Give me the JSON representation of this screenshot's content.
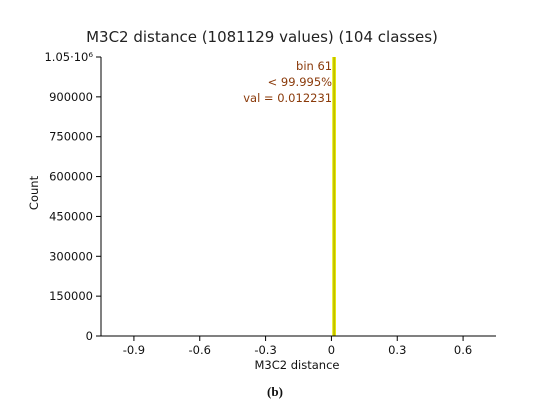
{
  "caption": "(b)",
  "chart_data": {
    "type": "bar",
    "title": "M3C2 distance (1081129 values)  (104 classes)",
    "xlabel": "M3C2 distance",
    "ylabel": "Count",
    "xlim": [
      -1.05,
      0.75
    ],
    "ylim": [
      0,
      1050000
    ],
    "x_ticks": [
      -0.9,
      -0.6,
      -0.3,
      0,
      0.3,
      0.6
    ],
    "x_tick_labels": [
      "-0.9",
      "-0.6",
      "-0.3",
      "0",
      "0.3",
      "0.6"
    ],
    "y_ticks": [
      0,
      150000,
      300000,
      450000,
      600000,
      750000,
      900000,
      1050000
    ],
    "y_tick_labels": [
      "0",
      "150000",
      "300000",
      "450000",
      "600000",
      "750000",
      "900000",
      "1.05·10⁶"
    ],
    "bins": [
      {
        "x": 0.012231,
        "width": 0.017,
        "value": 1050000
      }
    ],
    "highlight_line": {
      "x": 0.012231,
      "color": "#b8b800"
    },
    "bar_color": "#e8e800",
    "info_box": [
      "bin 61",
      "< 99.995%",
      "val = 0.012231"
    ],
    "grid": false,
    "legend": "none"
  }
}
